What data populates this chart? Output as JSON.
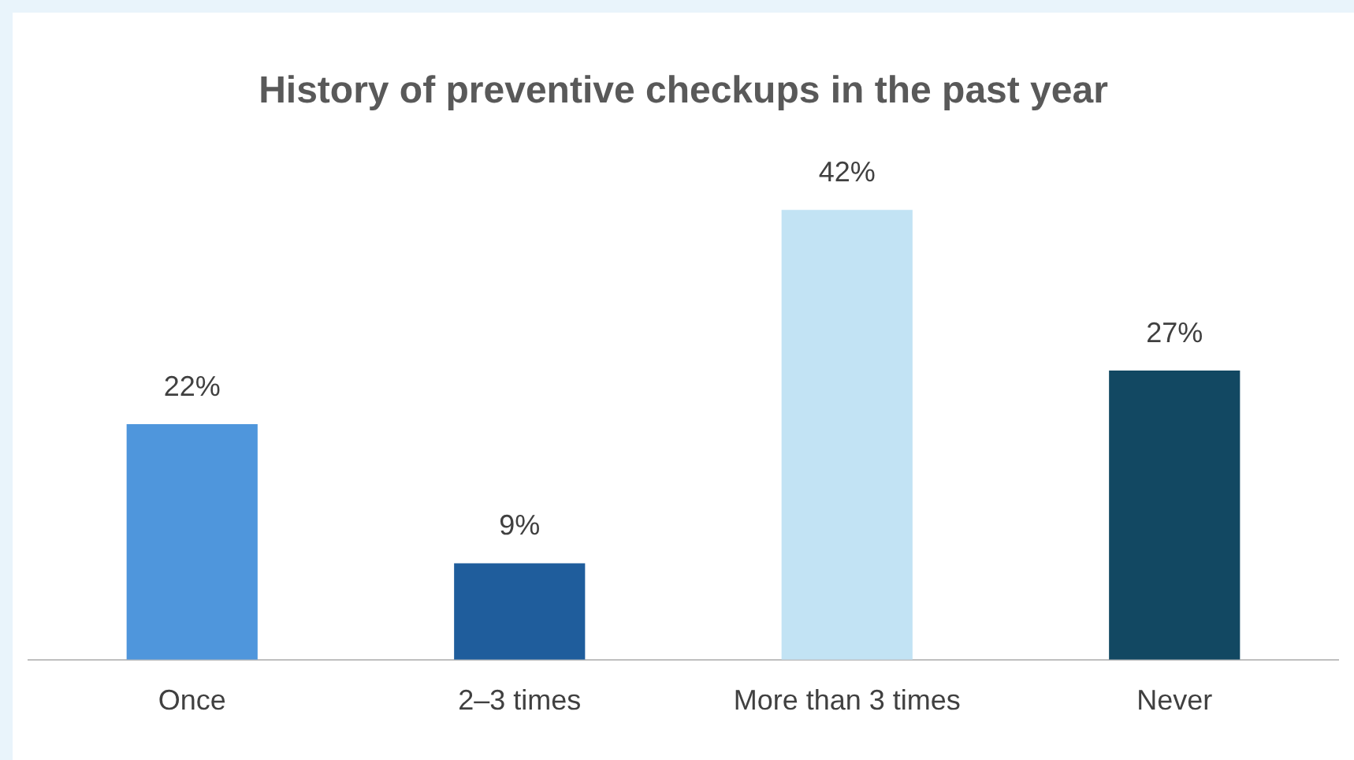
{
  "chart_data": {
    "type": "bar",
    "title": "History of preventive checkups in the past year",
    "categories": [
      "Once",
      "2–3 times",
      "More than 3 times",
      "Never"
    ],
    "values": [
      22,
      9,
      42,
      27
    ],
    "colors": [
      "#4f96dc",
      "#1f5d9c",
      "#c2e3f4",
      "#124862"
    ],
    "value_labels": [
      "22%",
      "9%",
      "42%",
      "27%"
    ],
    "grid": false,
    "legend": false
  }
}
